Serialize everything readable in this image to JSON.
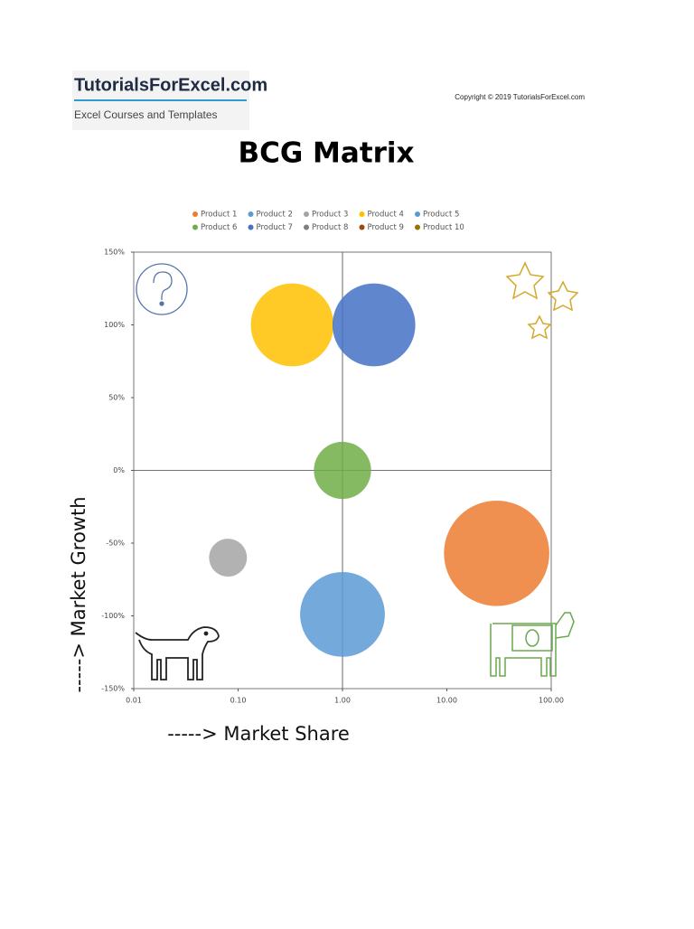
{
  "header": {
    "brand": "TutorialsForExcel.com",
    "tagline": "Excel Courses and Templates",
    "copyright": "Copyright © 2019 TutorialsForExcel.com"
  },
  "chart_data": {
    "type": "bubble",
    "title": "BCG Matrix",
    "x_label": "-----> Market Share",
    "y_label": "-----> Market Growth",
    "x_log": true,
    "xlim": [
      0.01,
      100
    ],
    "xticks": [
      0.01,
      {
        "value": 0.1,
        "label": "0.10"
      },
      {
        "value": 1,
        "label": "1.00"
      },
      {
        "value": 10,
        "label": "10.00"
      },
      {
        "value": 100,
        "label": "100.00"
      }
    ],
    "ylim": [
      -150,
      150
    ],
    "yticks": [
      {
        "value": 150,
        "label": "150%"
      },
      {
        "value": 100,
        "label": "100%"
      },
      {
        "value": 50,
        "label": "50%"
      },
      {
        "value": 0,
        "label": "0%"
      },
      {
        "value": -50,
        "label": "-50%"
      },
      {
        "value": -100,
        "label": "-100%"
      },
      {
        "value": -150,
        "label": "-150%"
      }
    ],
    "axes_cross": {
      "x": 1,
      "y": 0
    },
    "legend": "top",
    "series": [
      {
        "name": "Product 1",
        "color": "#ed7d31",
        "x": [
          30
        ],
        "values": [
          -57
        ],
        "size": [
          34
        ]
      },
      {
        "name": "Product 2",
        "color": "#5b9bd5",
        "x": [
          1
        ],
        "values": [
          -99
        ],
        "size": [
          22
        ]
      },
      {
        "name": "Product 3",
        "color": "#a5a5a5",
        "x": [
          0.08
        ],
        "values": [
          -60
        ],
        "size": [
          4.4
        ]
      },
      {
        "name": "Product 4",
        "color": "#ffc000",
        "x": [
          0.33
        ],
        "values": [
          100
        ],
        "size": [
          21
        ]
      },
      {
        "name": "Product 5",
        "color": "#5b9bd5",
        "x": [
          null
        ],
        "values": [
          null
        ],
        "size": [
          null
        ]
      },
      {
        "name": "Product 6",
        "color": "#70ad47",
        "x": [
          1
        ],
        "values": [
          0
        ],
        "size": [
          10
        ]
      },
      {
        "name": "Product 7",
        "color": "#4472c4",
        "x": [
          2
        ],
        "values": [
          100
        ],
        "size": [
          21
        ]
      },
      {
        "name": "Product 8",
        "color": "#7f7f7f",
        "x": [
          null
        ],
        "values": [
          null
        ],
        "size": [
          null
        ]
      },
      {
        "name": "Product 9",
        "color": "#9e480e",
        "x": [
          null
        ],
        "values": [
          null
        ],
        "size": [
          null
        ]
      },
      {
        "name": "Product 10",
        "color": "#997300",
        "x": [
          null
        ],
        "values": [
          null
        ],
        "size": [
          null
        ]
      }
    ]
  }
}
